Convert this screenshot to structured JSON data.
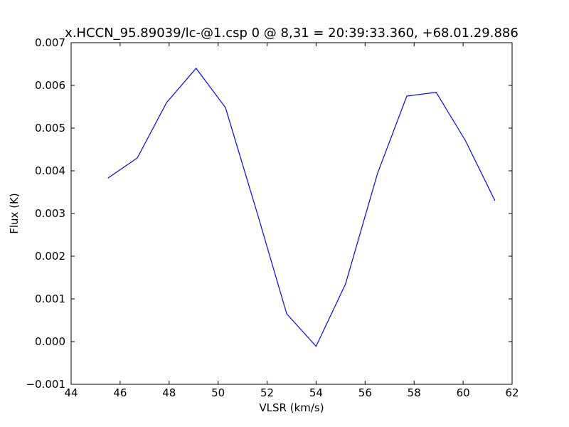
{
  "chart_data": {
    "type": "line",
    "title": "x.HCCN_95.89039/lc-@1.csp 0 @ 8,31 = 20:39:33.360, +68.01.29.886",
    "xlabel": "VLSR (km/s)",
    "ylabel": "Flux (K)",
    "xlim": [
      44,
      62
    ],
    "ylim": [
      -0.001,
      0.007
    ],
    "xticks": [
      44,
      46,
      48,
      50,
      52,
      54,
      56,
      58,
      60,
      62
    ],
    "xtick_labels": [
      "44",
      "46",
      "48",
      "50",
      "52",
      "54",
      "56",
      "58",
      "60",
      "62"
    ],
    "yticks": [
      -0.001,
      0.0,
      0.001,
      0.002,
      0.003,
      0.004,
      0.005,
      0.006,
      0.007
    ],
    "ytick_labels": [
      "−0.001",
      "0.000",
      "0.001",
      "0.002",
      "0.003",
      "0.004",
      "0.005",
      "0.006",
      "0.007"
    ],
    "grid": false,
    "series": [
      {
        "color": "#0000ff",
        "x": [
          45.5,
          46.7,
          47.9,
          49.1,
          50.3,
          51.6,
          52.8,
          54.0,
          55.2,
          56.5,
          57.7,
          58.9,
          60.1,
          61.3
        ],
        "y": [
          0.00383,
          0.0043,
          0.0056,
          0.0064,
          0.00548,
          0.003,
          0.00065,
          -0.00011,
          0.00135,
          0.00393,
          0.00575,
          0.00584,
          0.0047,
          0.0033
        ]
      }
    ]
  }
}
